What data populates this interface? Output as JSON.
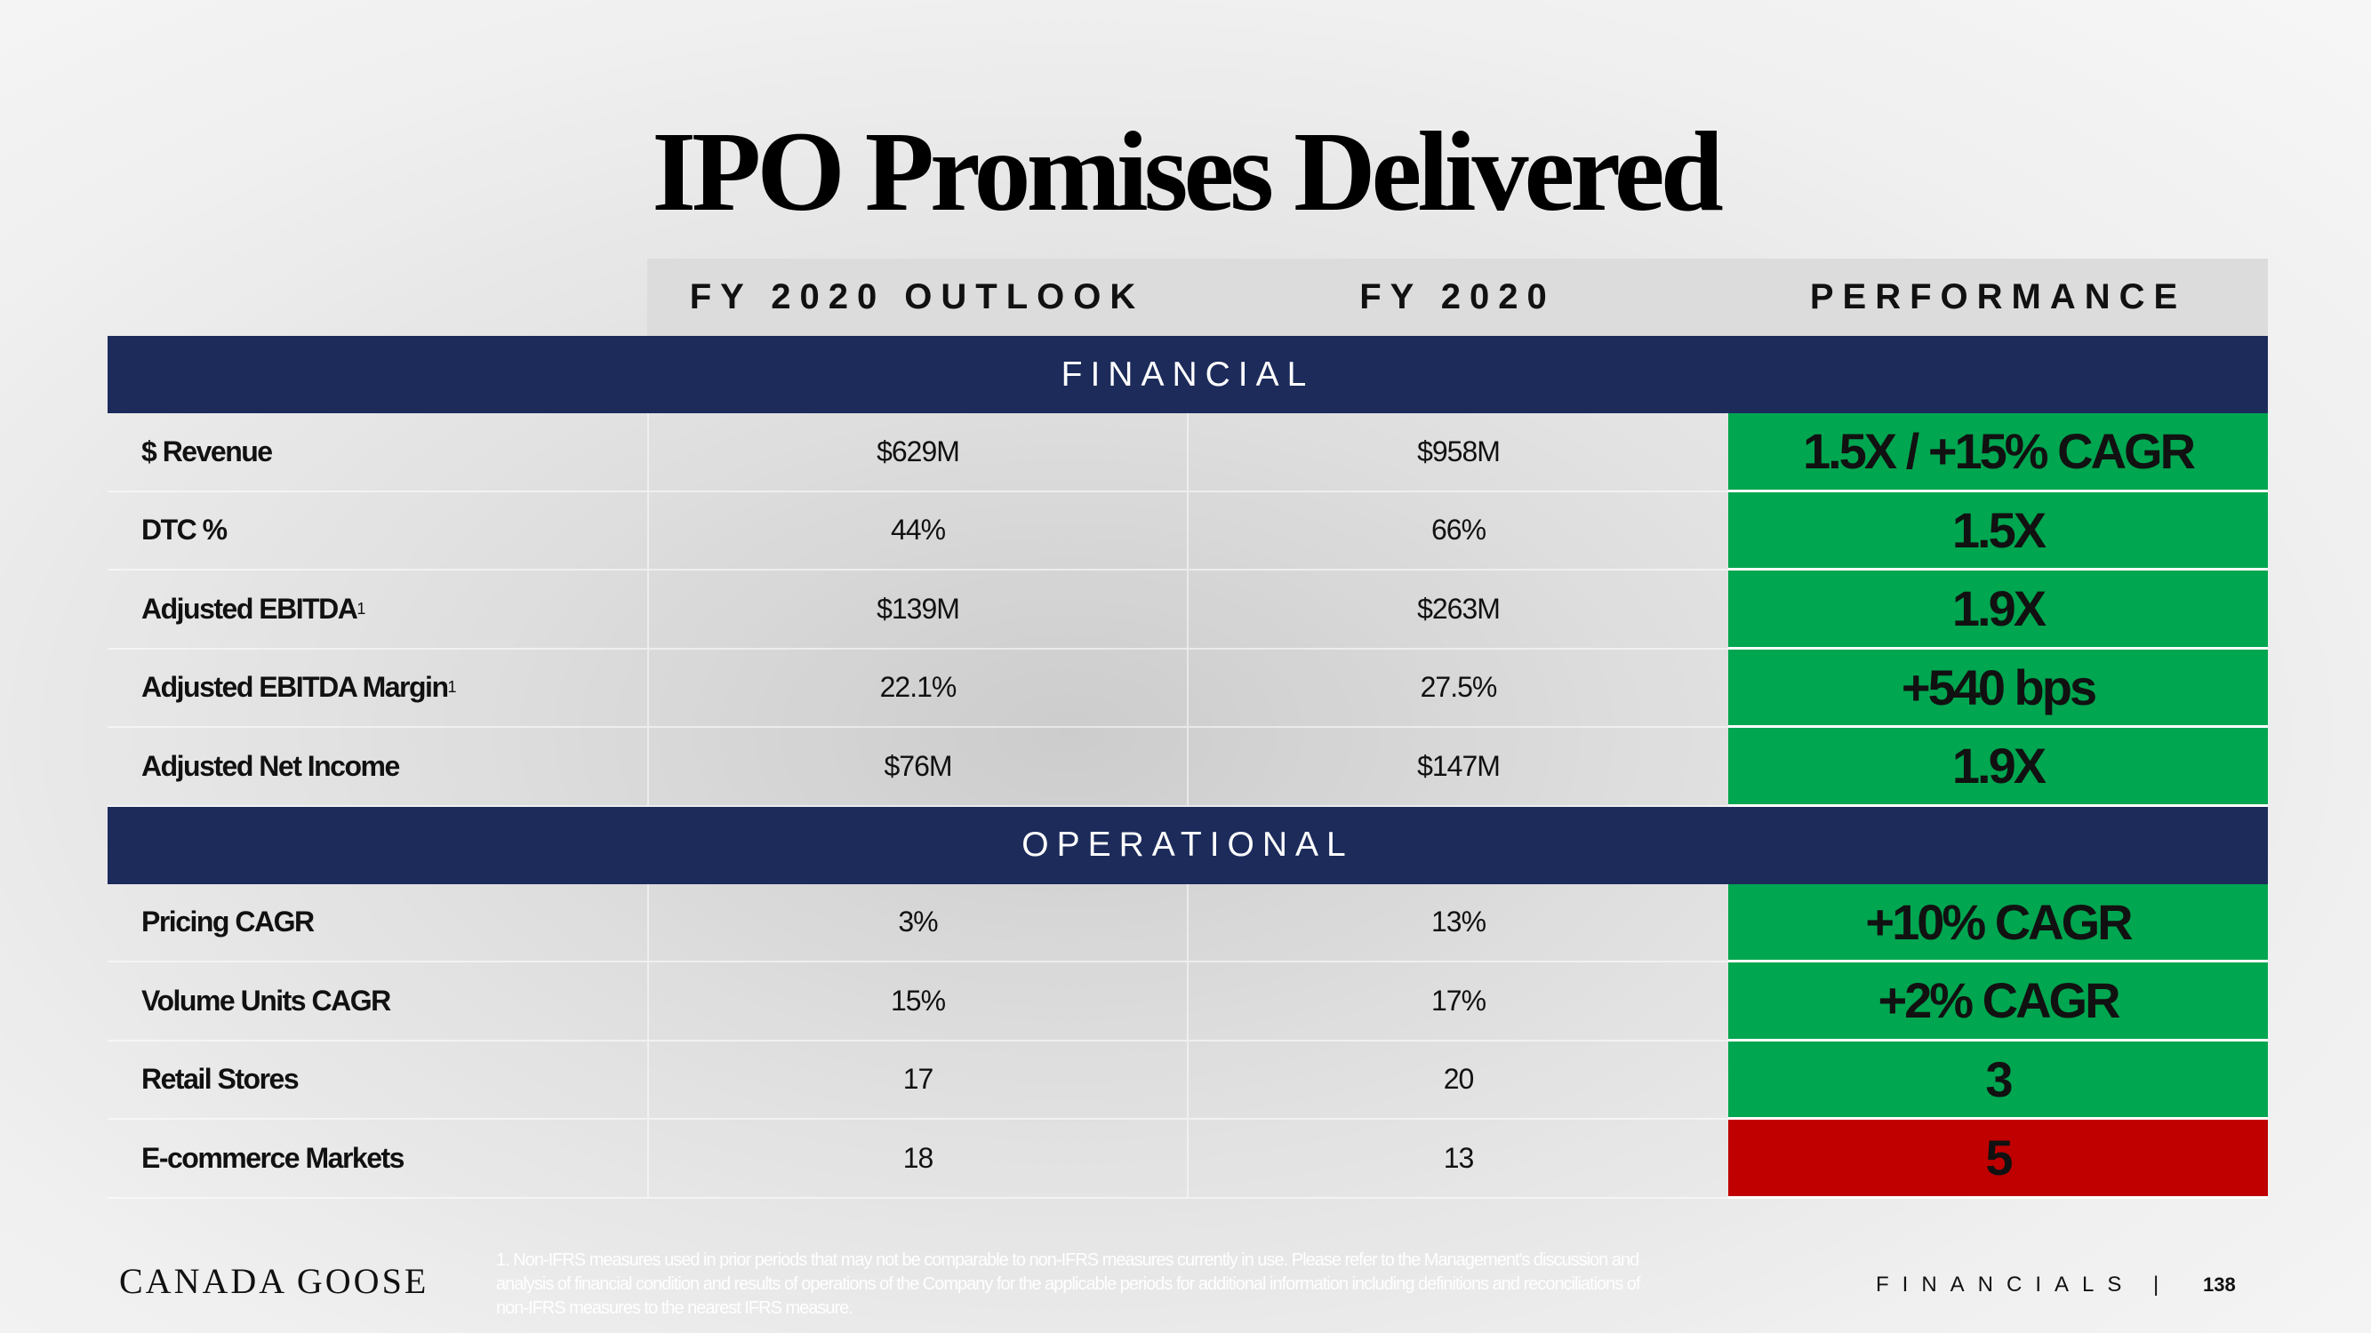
{
  "header": {
    "title": "IPO Promises Delivered"
  },
  "table": {
    "columns": [
      "FY 2020 OUTLOOK",
      "FY 2020",
      "PERFORMANCE"
    ],
    "sections": [
      {
        "name": "FINANCIAL",
        "rows": [
          {
            "label": "$ Revenue",
            "outlook": "$629M",
            "actual": "$958M",
            "performance": "1.5X / +15% CAGR",
            "color": "#00a650"
          },
          {
            "label": "DTC %",
            "outlook": "44%",
            "actual": "66%",
            "performance": "1.5X",
            "color": "#00a650"
          },
          {
            "label": "Adjusted EBITDA",
            "note": "1",
            "outlook": "$139M",
            "actual": "$263M",
            "performance": "1.9X",
            "color": "#00a650"
          },
          {
            "label": "Adjusted EBITDA Margin",
            "note": "1",
            "outlook": "22.1%",
            "actual": "27.5%",
            "performance": "+540 bps",
            "color": "#00a650"
          },
          {
            "label": "Adjusted Net Income",
            "outlook": "$76M",
            "actual": "$147M",
            "performance": "1.9X",
            "color": "#00a650"
          }
        ]
      },
      {
        "name": "OPERATIONAL",
        "rows": [
          {
            "label": "Pricing CAGR",
            "outlook": "3%",
            "actual": "13%",
            "performance": "+10% CAGR",
            "color": "#00a650"
          },
          {
            "label": "Volume Units CAGR",
            "outlook": "15%",
            "actual": "17%",
            "performance": "+2% CAGR",
            "color": "#00a650"
          },
          {
            "label": "Retail Stores",
            "outlook": "17",
            "actual": "20",
            "performance": "3",
            "color": "#00a650"
          },
          {
            "label": "E-commerce Markets",
            "outlook": "18",
            "actual": "13",
            "performance": "5",
            "color": "#c00000"
          }
        ]
      }
    ]
  },
  "footer": {
    "logo": "CANADA GOOSE",
    "footnote": "1. Non-IFRS measures used in prior periods that may not be comparable to non-IFRS measures currently in use. Please refer to the Management's discussion and analysis of financial condition and results of operations of the Company for the applicable periods for additional information including definitions and reconciliations of non-IFRS measures to the nearest IFRS measure.",
    "section": "FINANCIALS",
    "separator": "|",
    "page": "138"
  }
}
